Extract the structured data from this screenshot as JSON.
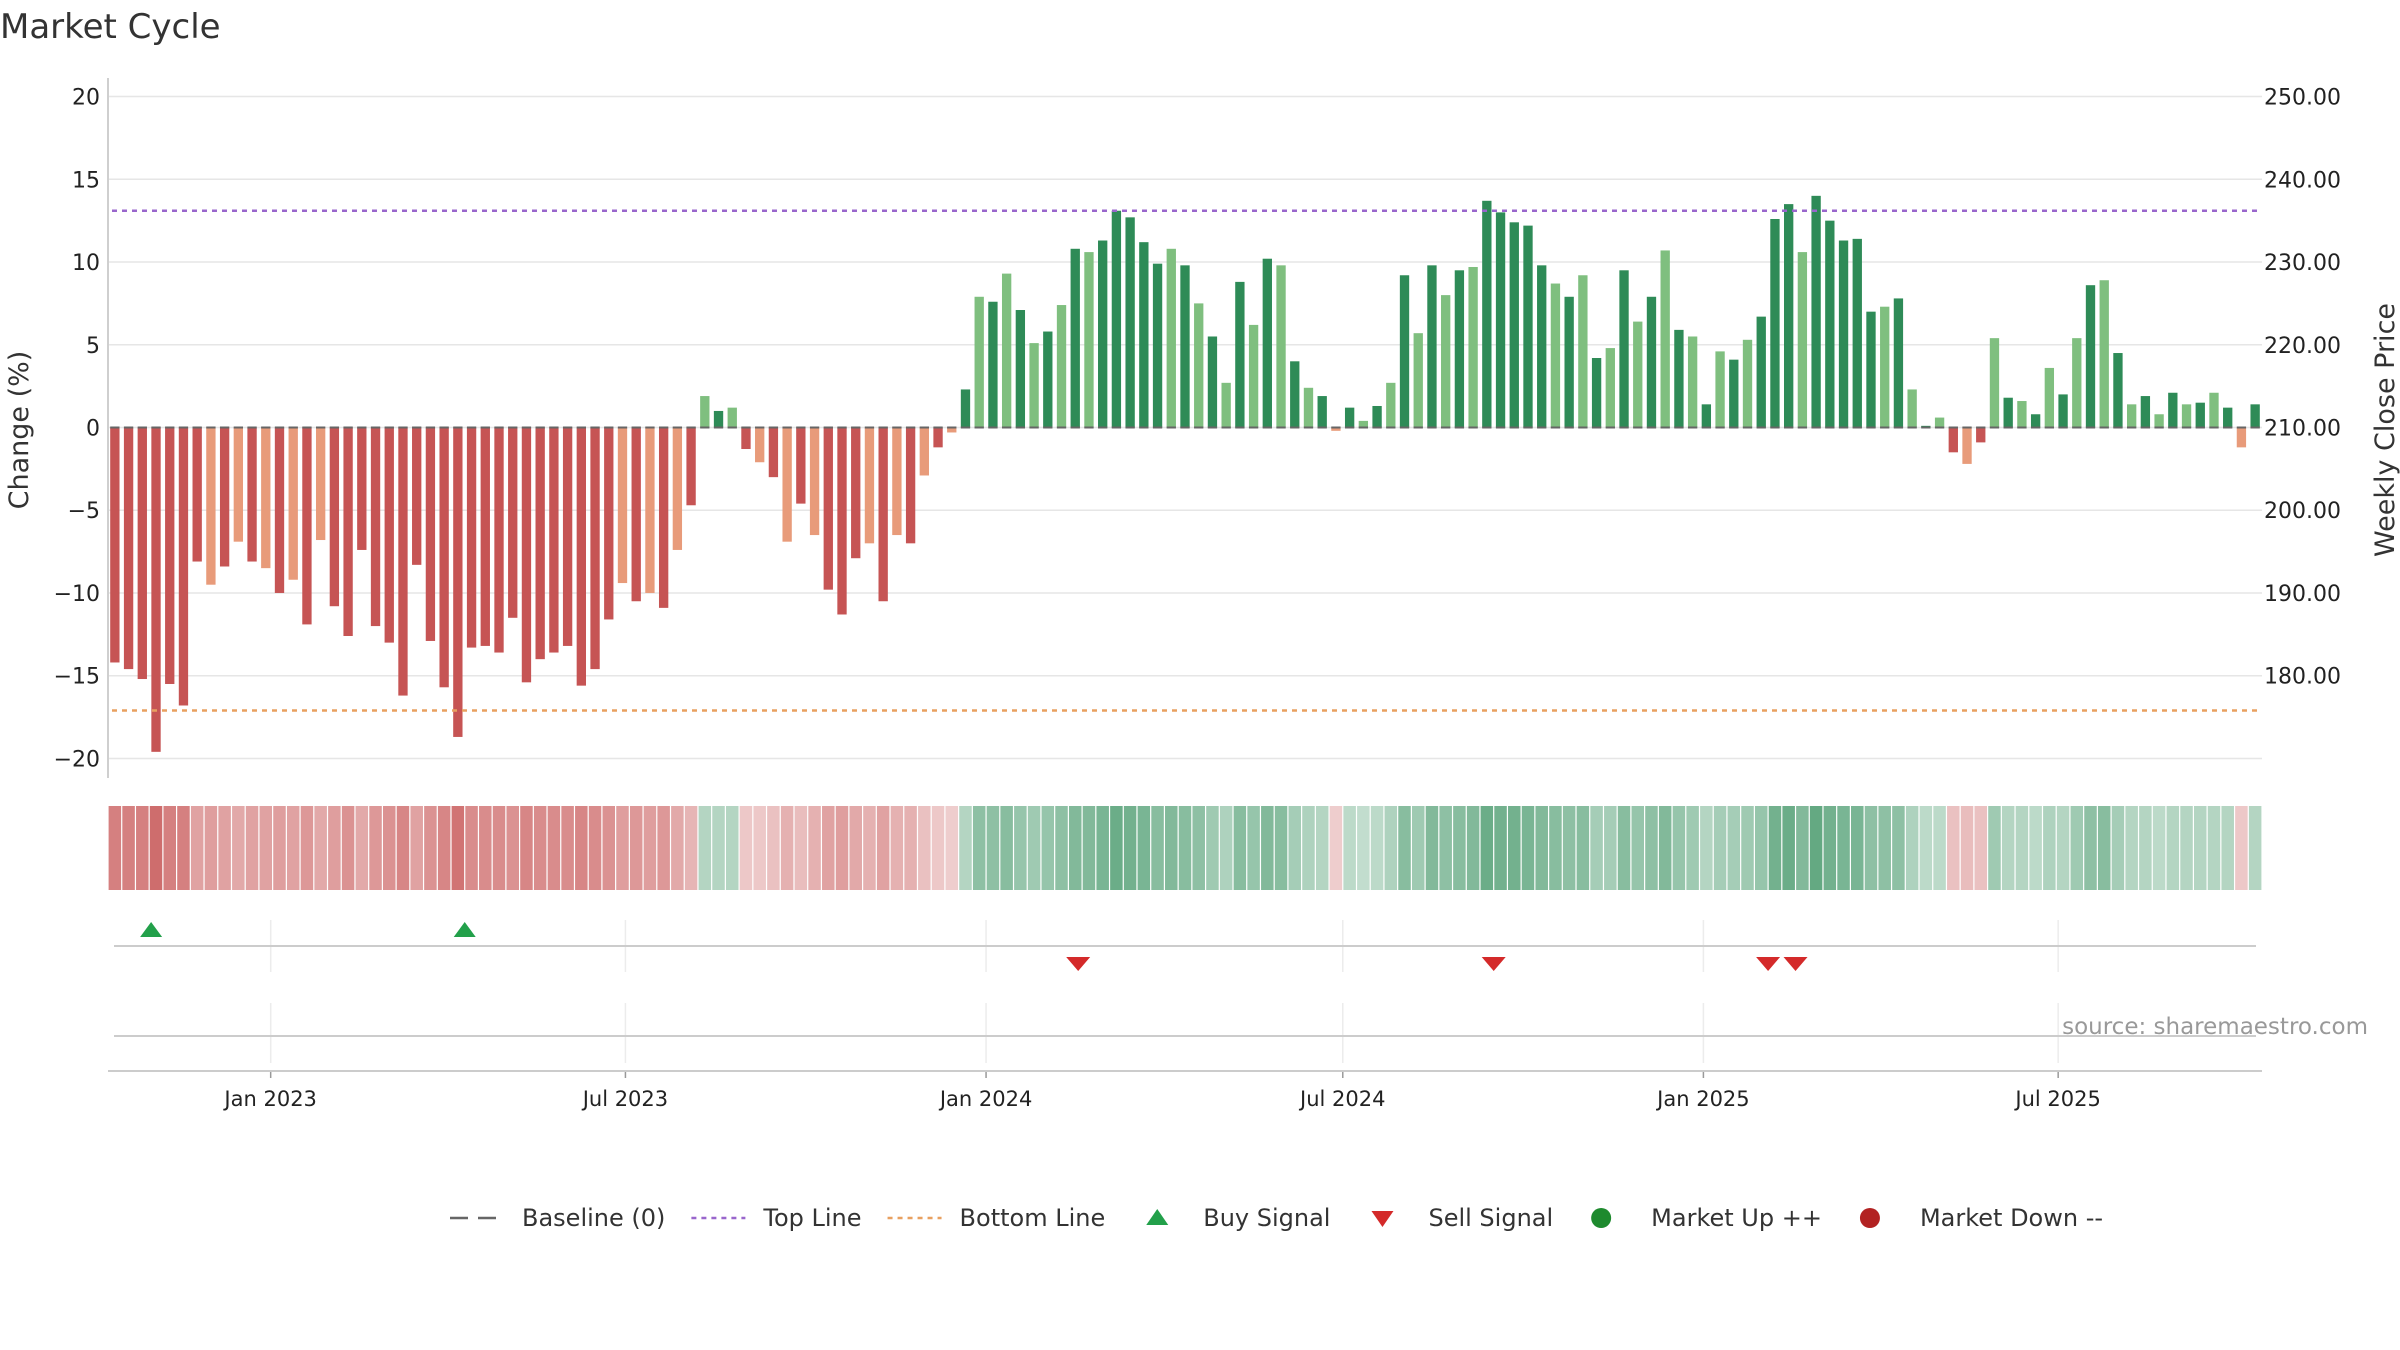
{
  "title": "Market Cycle",
  "source": "source: sharemaestro.com",
  "colors": {
    "dark_red": "#c65454",
    "light_red": "#e89b7a",
    "dark_green": "#2e8b57",
    "light_green": "#7fbf7f",
    "top_line": "#9966cc",
    "bottom_line": "#e8a060",
    "baseline": "#666666",
    "buy": "#22a04a",
    "sell": "#d42a2a",
    "market_up": "#1e8a2e",
    "market_down": "#b22222"
  },
  "legend": [
    {
      "key": "baseline",
      "label": "Baseline (0)"
    },
    {
      "key": "top",
      "label": "Top Line"
    },
    {
      "key": "bottom",
      "label": "Bottom Line"
    },
    {
      "key": "buy",
      "label": "Buy Signal"
    },
    {
      "key": "sell",
      "label": "Sell Signal"
    },
    {
      "key": "up",
      "label": "Market Up ++"
    },
    {
      "key": "down",
      "label": "Market Down --"
    }
  ],
  "chart_data": {
    "type": "bar",
    "ylabel_left": "Change (%)",
    "ylabel_right": "Weekly Close Price",
    "ylim_left": [
      -21,
      21
    ],
    "yticks_left": [
      20,
      15,
      10,
      5,
      0,
      -5,
      -10,
      -15,
      -20
    ],
    "yticks_left_labels": [
      "20",
      "15",
      "10",
      "5",
      "0",
      "−5",
      "−10",
      "−15",
      "−20"
    ],
    "yticks_right": [
      "250.00",
      "240.00",
      "230.00",
      "220.00",
      "210.00",
      "200.00",
      "190.00",
      "180.00"
    ],
    "top_line": 13.1,
    "bottom_line": -17.1,
    "x_start": "2022-10-10",
    "x_end": "2025-10-13",
    "xticks": [
      {
        "date": "2023-01-01",
        "label": "Jan 2023"
      },
      {
        "date": "2023-07-01",
        "label": "Jul 2023"
      },
      {
        "date": "2024-01-01",
        "label": "Jan 2024"
      },
      {
        "date": "2024-07-01",
        "label": "Jul 2024"
      },
      {
        "date": "2025-01-01",
        "label": "Jan 2025"
      },
      {
        "date": "2025-07-01",
        "label": "Jul 2025"
      }
    ],
    "first_week": "2022-10-10",
    "values": [
      -14.2,
      -14.6,
      -15.2,
      -19.6,
      -15.5,
      -16.8,
      -8.1,
      -9.5,
      -8.4,
      -6.9,
      -8.1,
      -8.5,
      -10.0,
      -9.2,
      -11.9,
      -6.8,
      -10.8,
      -12.6,
      -7.4,
      -12.0,
      -13.0,
      -16.2,
      -8.3,
      -12.9,
      -15.7,
      -18.7,
      -13.3,
      -13.2,
      -13.6,
      -11.5,
      -15.4,
      -14.0,
      -13.6,
      -13.2,
      -15.6,
      -14.6,
      -11.6,
      -9.4,
      -10.5,
      -10.0,
      -10.9,
      -7.4,
      -4.7,
      1.9,
      1.0,
      1.2,
      -1.3,
      -2.1,
      -3.0,
      -6.9,
      -4.6,
      -6.5,
      -9.8,
      -11.3,
      -7.9,
      -7.0,
      -10.5,
      -6.5,
      -7.0,
      -2.9,
      -1.2,
      -0.3,
      2.3,
      7.9,
      7.6,
      9.3,
      7.1,
      5.1,
      5.8,
      7.4,
      10.8,
      10.6,
      11.3,
      13.1,
      12.7,
      11.2,
      9.9,
      10.8,
      9.8,
      7.5,
      5.5,
      2.7,
      8.8,
      6.2,
      10.2,
      9.8,
      4.0,
      2.4,
      1.9,
      -0.2,
      1.2,
      0.4,
      1.3,
      2.7,
      9.2,
      5.7,
      9.8,
      8.0,
      9.5,
      9.7,
      13.7,
      13.0,
      12.4,
      12.2,
      9.8,
      8.7,
      7.9,
      9.2,
      4.2,
      4.8,
      9.5,
      6.4,
      7.9,
      10.7,
      5.9,
      5.5,
      1.4,
      4.6,
      4.1,
      5.3,
      6.7,
      12.6,
      13.5,
      10.6,
      14.0,
      12.5,
      11.3,
      11.4,
      7.0,
      7.3,
      7.8,
      2.3,
      0.1,
      0.6,
      -1.5,
      -2.2,
      -0.9,
      5.4,
      1.8,
      1.6,
      0.8,
      3.6,
      2.0,
      5.4,
      8.6,
      8.9,
      4.5,
      1.4,
      1.9,
      0.8,
      2.1,
      1.4,
      1.5,
      2.1,
      1.2,
      -1.2,
      1.4
    ],
    "strength_band": [
      0.85,
      0.85,
      0.85,
      1.0,
      0.85,
      0.85,
      0.55,
      0.6,
      0.55,
      0.5,
      0.55,
      0.55,
      0.6,
      0.55,
      0.65,
      0.5,
      0.6,
      0.7,
      0.5,
      0.65,
      0.7,
      0.8,
      0.55,
      0.7,
      0.8,
      0.95,
      0.75,
      0.75,
      0.75,
      0.7,
      0.8,
      0.75,
      0.75,
      0.75,
      0.8,
      0.75,
      0.7,
      0.6,
      0.65,
      0.6,
      0.65,
      0.5,
      0.4,
      0.3,
      0.3,
      0.3,
      0.25,
      0.25,
      0.3,
      0.45,
      0.35,
      0.45,
      0.55,
      0.6,
      0.5,
      0.45,
      0.55,
      0.45,
      0.45,
      0.3,
      0.25,
      0.2,
      0.3,
      0.55,
      0.55,
      0.6,
      0.5,
      0.45,
      0.5,
      0.55,
      0.65,
      0.65,
      0.7,
      0.8,
      0.75,
      0.7,
      0.6,
      0.65,
      0.6,
      0.55,
      0.45,
      0.35,
      0.6,
      0.5,
      0.65,
      0.6,
      0.4,
      0.35,
      0.3,
      0.2,
      0.25,
      0.2,
      0.25,
      0.35,
      0.6,
      0.45,
      0.65,
      0.55,
      0.6,
      0.65,
      0.8,
      0.75,
      0.75,
      0.7,
      0.65,
      0.6,
      0.55,
      0.6,
      0.4,
      0.4,
      0.6,
      0.5,
      0.55,
      0.65,
      0.5,
      0.45,
      0.3,
      0.4,
      0.4,
      0.45,
      0.5,
      0.75,
      0.8,
      0.65,
      0.85,
      0.75,
      0.7,
      0.7,
      0.55,
      0.55,
      0.55,
      0.35,
      0.25,
      0.25,
      0.3,
      0.35,
      0.3,
      0.45,
      0.3,
      0.3,
      0.25,
      0.35,
      0.3,
      0.45,
      0.55,
      0.6,
      0.4,
      0.3,
      0.3,
      0.25,
      0.3,
      0.3,
      0.3,
      0.3,
      0.3,
      0.25,
      0.3
    ],
    "buy_signals": [
      "2022-11-01",
      "2023-04-10"
    ],
    "sell_signals": [
      "2024-02-17",
      "2024-09-16",
      "2025-02-03",
      "2025-02-17"
    ]
  }
}
